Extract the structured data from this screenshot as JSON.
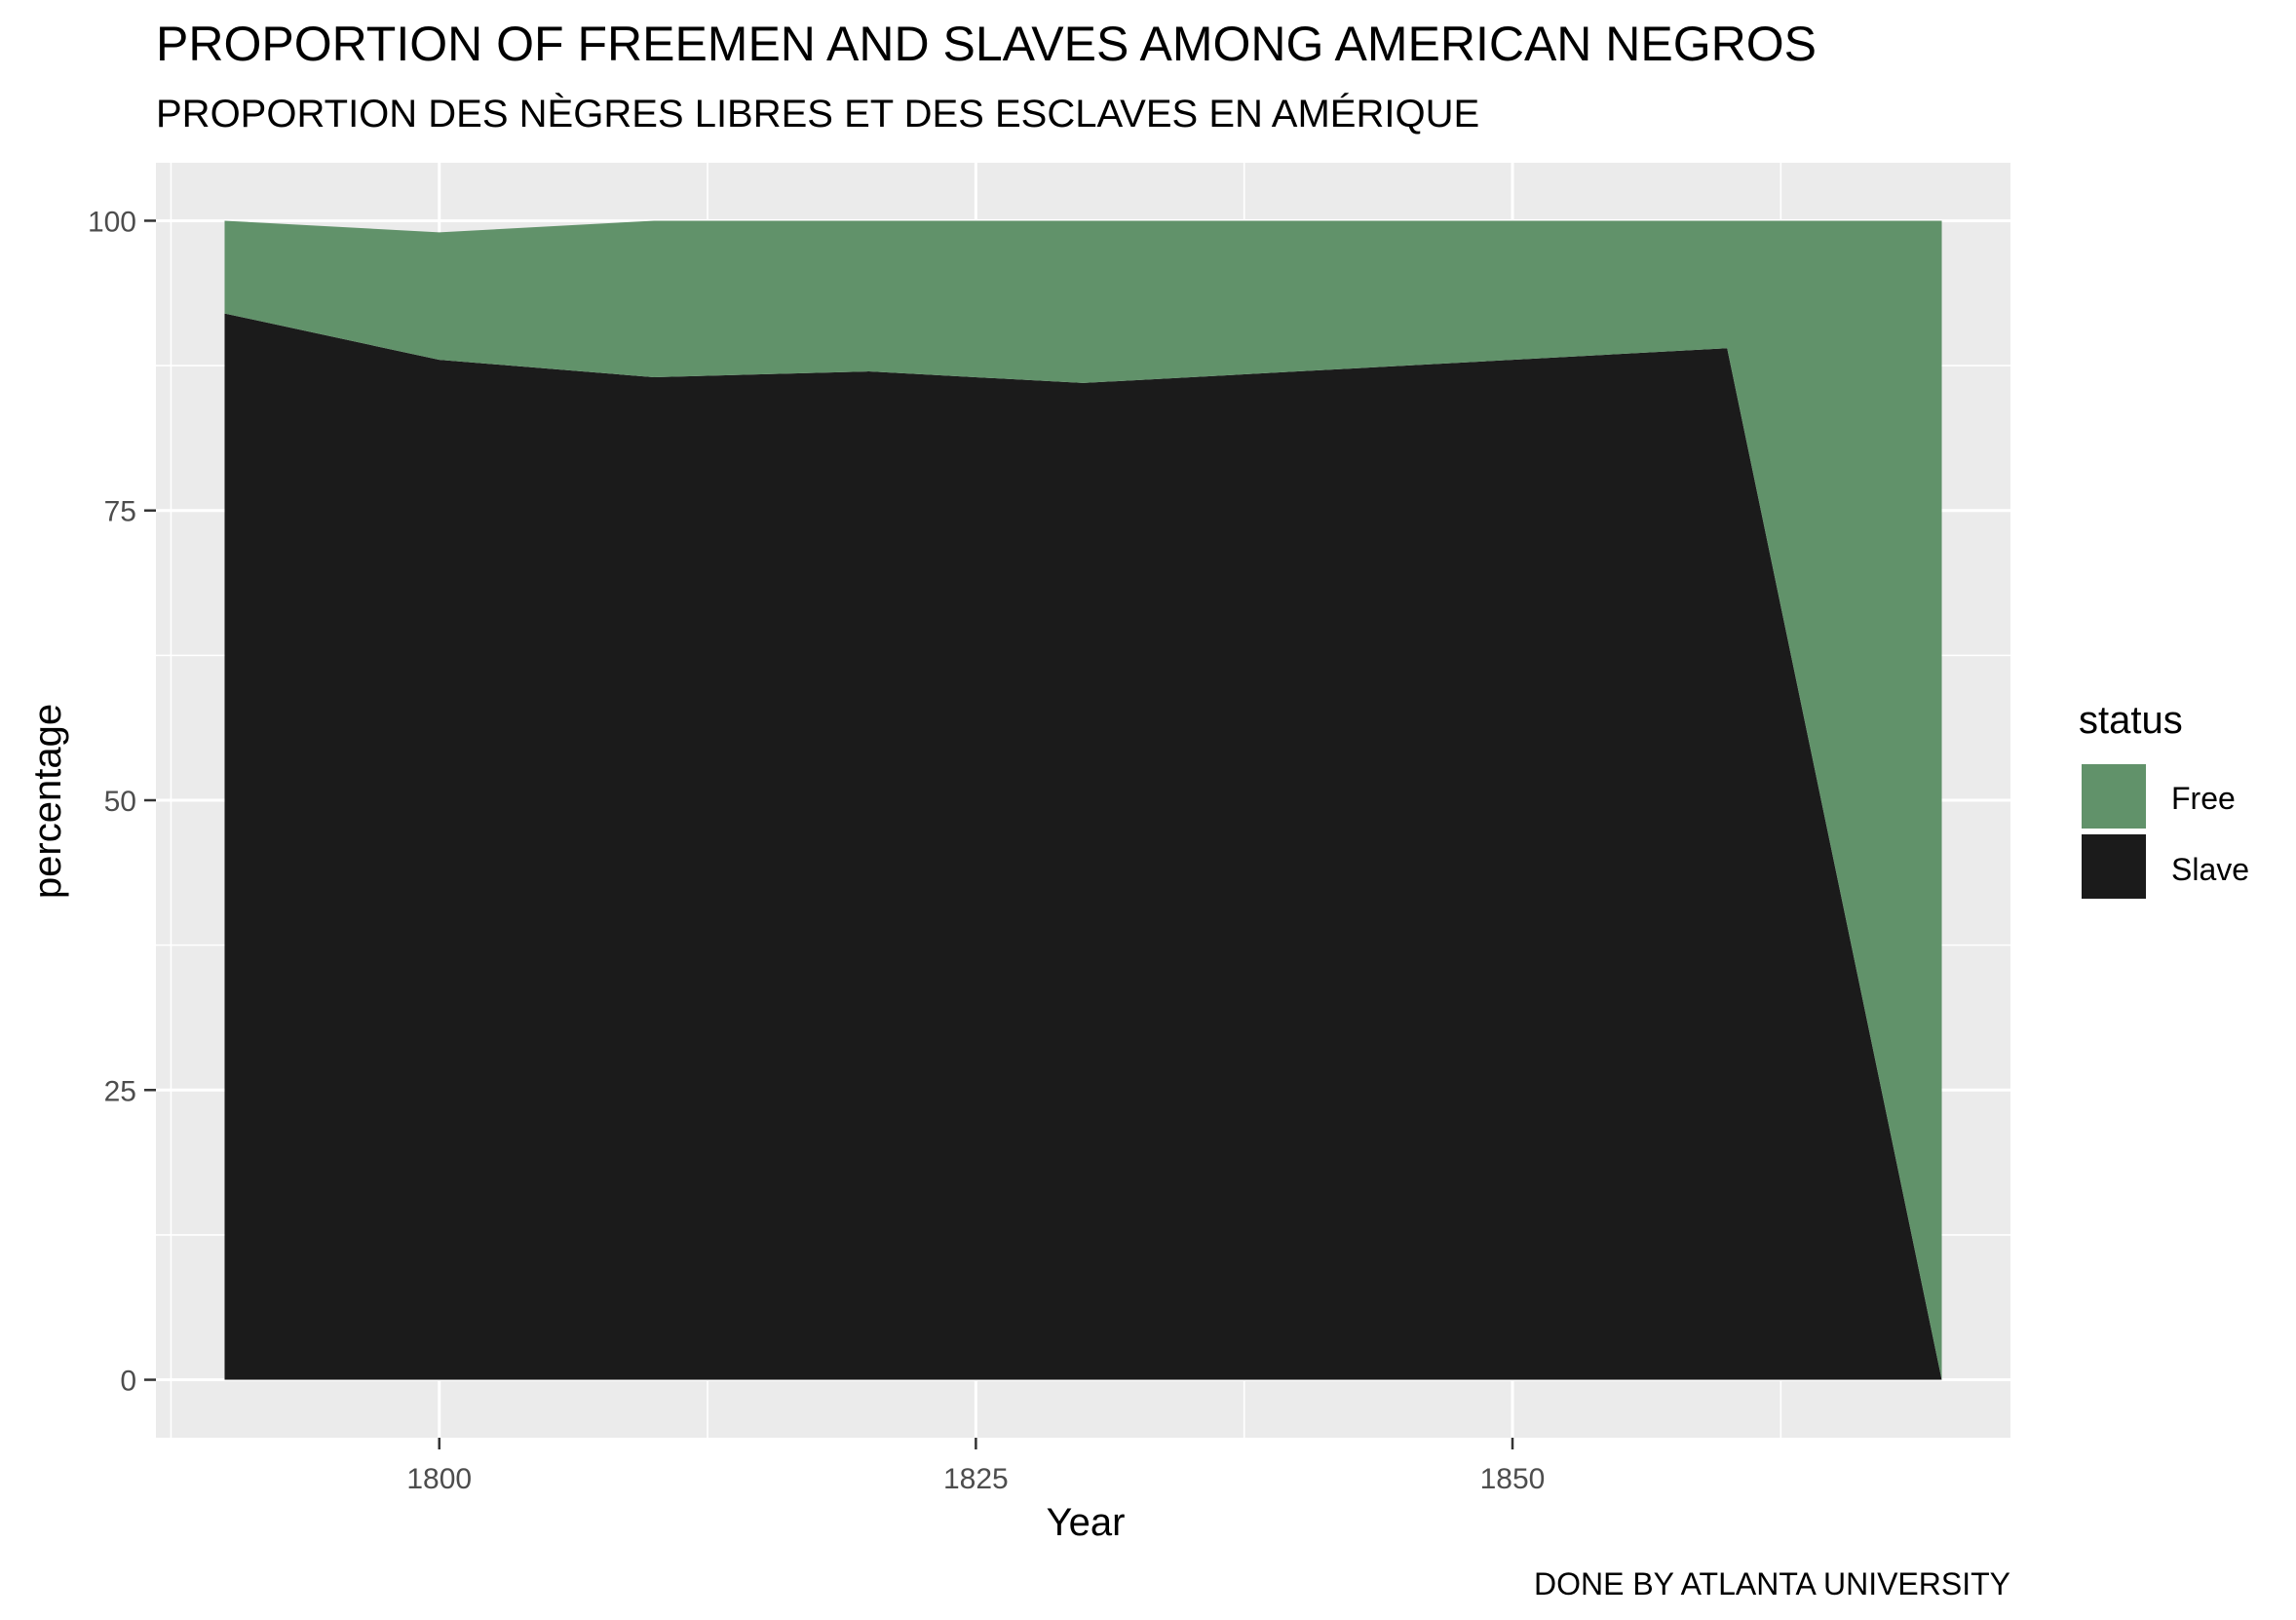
{
  "chart_data": {
    "type": "area",
    "stacked": true,
    "title": "PROPORTION OF FREEMEN AND SLAVES AMONG AMERICAN NEGROS",
    "subtitle": "PROPORTION DES NÈGRES LIBRES ET DES ESCLAVES EN AMÉRIQUE",
    "xlabel": "Year",
    "ylabel": "percentage",
    "caption": "DONE BY ATLANTA UNIVERSITY",
    "x": [
      1790,
      1800,
      1810,
      1820,
      1830,
      1840,
      1850,
      1860,
      1870
    ],
    "xlim": [
      1786.8,
      1873.2
    ],
    "ylim": [
      -5,
      105
    ],
    "x_ticks": [
      1800,
      1825,
      1850
    ],
    "y_ticks": [
      0,
      25,
      50,
      75,
      100
    ],
    "x_tick_labels": [
      "1800",
      "1825",
      "1850"
    ],
    "y_tick_labels": [
      "0",
      "25",
      "50",
      "75",
      "100"
    ],
    "series": [
      {
        "name": "Slave",
        "color": "#1b1b1b",
        "values": [
          92,
          88,
          86.5,
          87,
          86,
          87,
          88,
          89,
          0
        ]
      },
      {
        "name": "Free",
        "color": "#61926a",
        "values": [
          8,
          11,
          13.5,
          13,
          14,
          13,
          12,
          11,
          100
        ]
      }
    ],
    "legend": {
      "title": "status",
      "placement": "right",
      "items": [
        {
          "label": "Free",
          "color": "#61926a"
        },
        {
          "label": "Slave",
          "color": "#1b1b1b"
        }
      ]
    },
    "grid": true,
    "panel_background": "#ebebeb",
    "grid_color": "#ffffff"
  }
}
